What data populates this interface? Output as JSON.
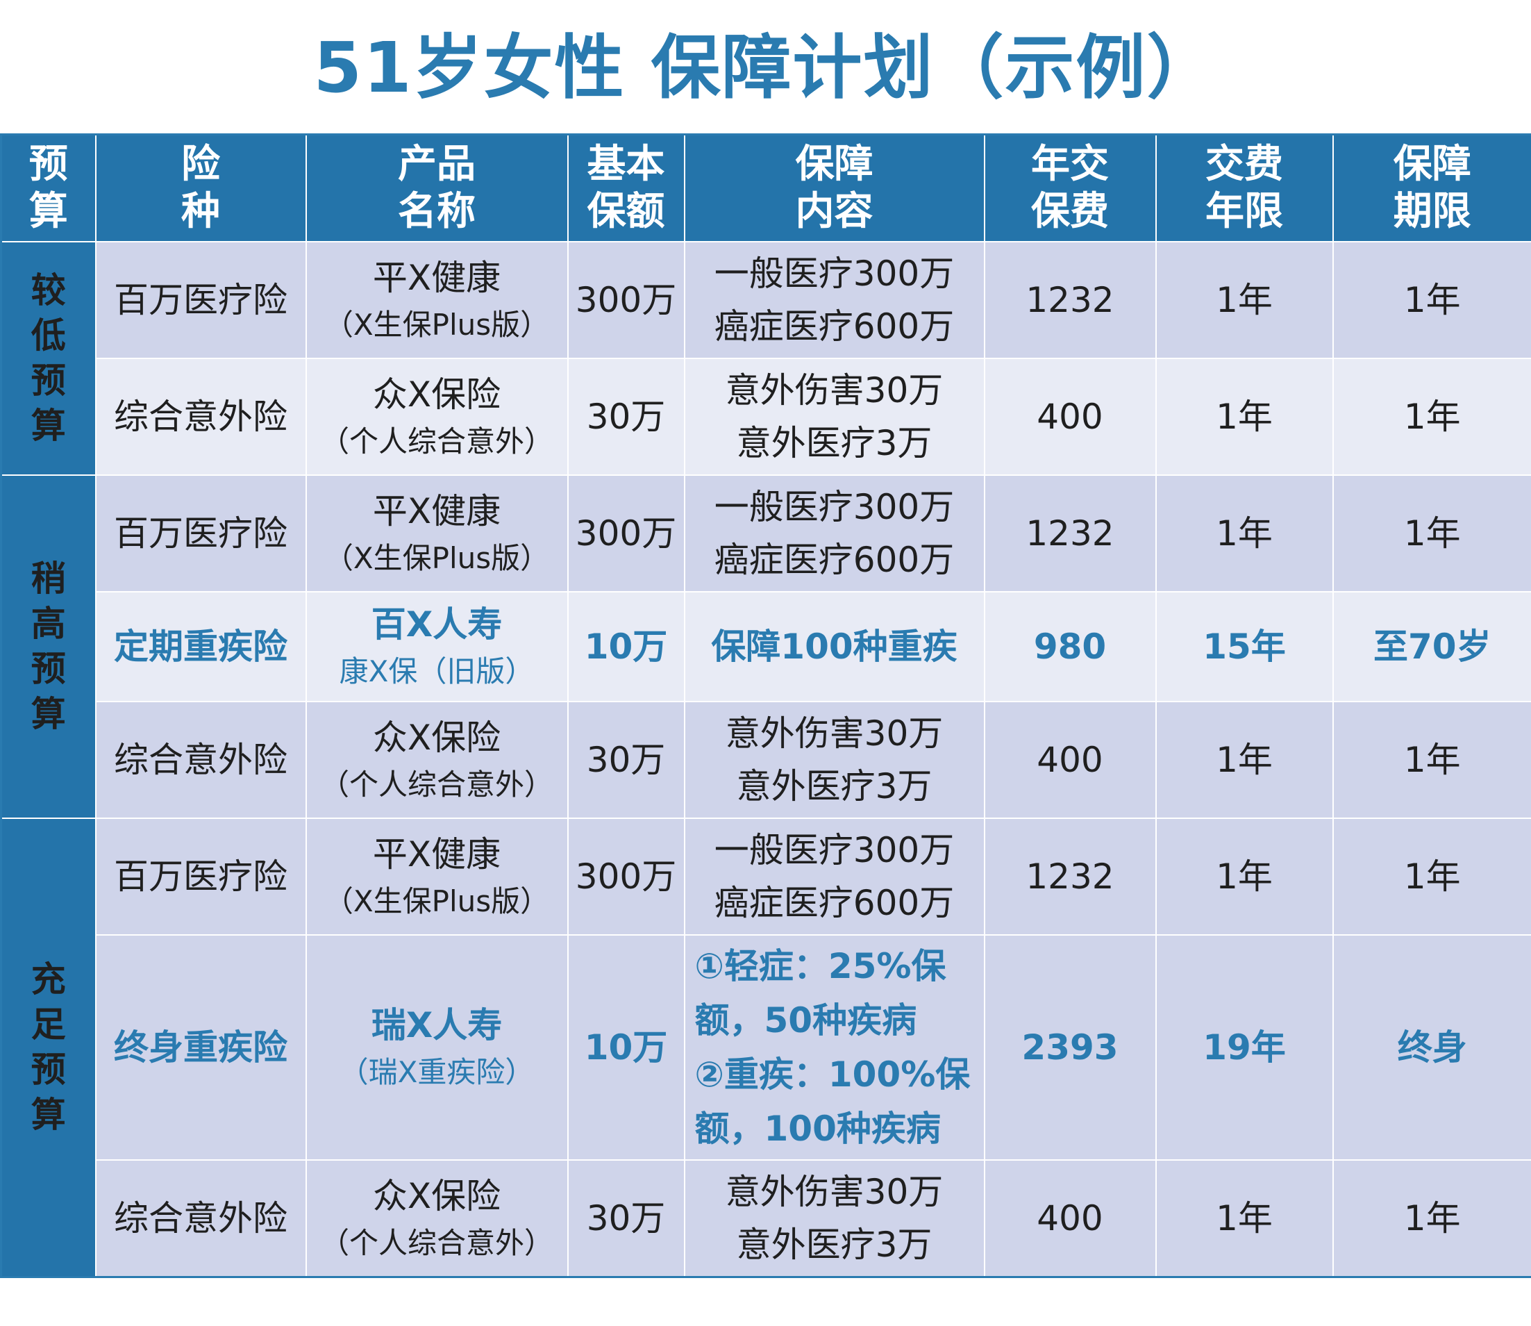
{
  "title": "51岁女性 保障计划（示例）",
  "colors": {
    "header_bg": "#2474aa",
    "accent": "#2a7bb0",
    "row_dark": "#cfd4ea",
    "row_light": "#e8ebf5"
  },
  "headers": {
    "budget": [
      "预",
      "算"
    ],
    "type": [
      "险",
      "种"
    ],
    "product": [
      "产品",
      "名称"
    ],
    "amount": [
      "基本",
      "保额"
    ],
    "content": [
      "保障",
      "内容"
    ],
    "premium": [
      "年交",
      "保费"
    ],
    "pay_term": [
      "交费",
      "年限"
    ],
    "coverage_term": [
      "保障",
      "期限"
    ]
  },
  "groups": [
    {
      "label": [
        "较",
        "低",
        "预",
        "算"
      ],
      "rows": [
        {
          "type": "百万医疗险",
          "product": "平X健康",
          "product_sub": "（X生保Plus版）",
          "amount": "300万",
          "content": [
            "一般医疗300万",
            "癌症医疗600万"
          ],
          "premium": "1232",
          "pay_term": "1年",
          "coverage_term": "1年"
        },
        {
          "type": "综合意外险",
          "product": "众X保险",
          "product_sub": "（个人综合意外）",
          "amount": "30万",
          "content": [
            "意外伤害30万",
            "意外医疗3万"
          ],
          "premium": "400",
          "pay_term": "1年",
          "coverage_term": "1年"
        }
      ]
    },
    {
      "label": [
        "稍",
        "高",
        "预",
        "算"
      ],
      "rows": [
        {
          "type": "百万医疗险",
          "product": "平X健康",
          "product_sub": "（X生保Plus版）",
          "amount": "300万",
          "content": [
            "一般医疗300万",
            "癌症医疗600万"
          ],
          "premium": "1232",
          "pay_term": "1年",
          "coverage_term": "1年"
        },
        {
          "type": "定期重疾险",
          "product": "百X人寿",
          "product_sub": "康X保（旧版）",
          "amount": "10万",
          "content": [
            "保障100种重疾"
          ],
          "premium": "980",
          "pay_term": "15年",
          "coverage_term": "至70岁"
        },
        {
          "type": "综合意外险",
          "product": "众X保险",
          "product_sub": "（个人综合意外）",
          "amount": "30万",
          "content": [
            "意外伤害30万",
            "意外医疗3万"
          ],
          "premium": "400",
          "pay_term": "1年",
          "coverage_term": "1年"
        }
      ]
    },
    {
      "label": [
        "充",
        "足",
        "预",
        "算"
      ],
      "rows": [
        {
          "type": "百万医疗险",
          "product": "平X健康",
          "product_sub": "（X生保Plus版）",
          "amount": "300万",
          "content": [
            "一般医疗300万",
            "癌症医疗600万"
          ],
          "premium": "1232",
          "pay_term": "1年",
          "coverage_term": "1年"
        },
        {
          "type": "终身重疾险",
          "product": "瑞X人寿",
          "product_sub": "（瑞X重疾险）",
          "amount": "10万",
          "content": [
            "①轻症：25%保",
            "额，50种疾病",
            "②重疾：100%保",
            "额，100种疾病"
          ],
          "premium": "2393",
          "pay_term": "19年",
          "coverage_term": "终身"
        },
        {
          "type": "综合意外险",
          "product": "众X保险",
          "product_sub": "（个人综合意外）",
          "amount": "30万",
          "content": [
            "意外伤害30万",
            "意外医疗3万"
          ],
          "premium": "400",
          "pay_term": "1年",
          "coverage_term": "1年"
        }
      ]
    }
  ]
}
